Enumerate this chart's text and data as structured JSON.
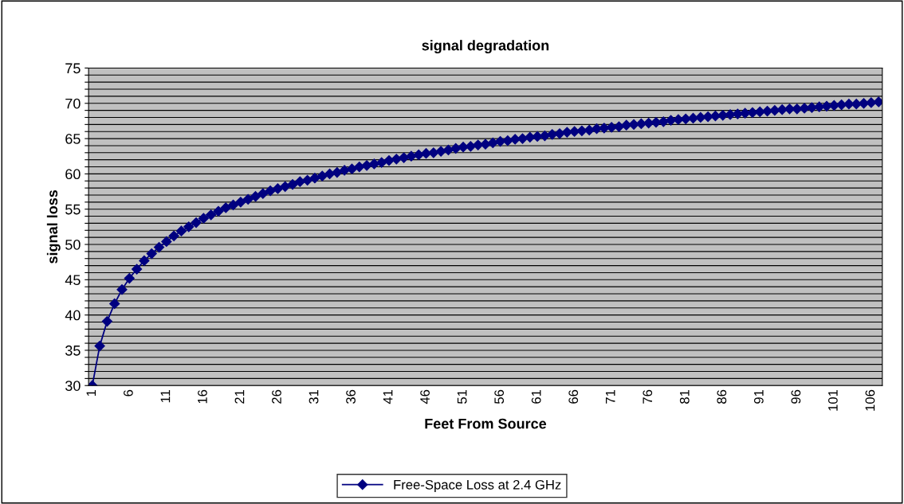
{
  "chart_data": {
    "type": "line",
    "title": "signal degradation",
    "xlabel": "Feet From Source",
    "ylabel": "signal loss",
    "categories": [
      "1",
      null,
      null,
      null,
      null,
      "6",
      null,
      null,
      null,
      null,
      "11",
      null,
      null,
      null,
      null,
      "16",
      null,
      null,
      null,
      null,
      "21",
      null,
      null,
      null,
      null,
      "26",
      null,
      null,
      null,
      null,
      "31",
      null,
      null,
      null,
      null,
      "36",
      null,
      null,
      null,
      null,
      "41",
      null,
      null,
      null,
      null,
      "46",
      null,
      null,
      null,
      null,
      "51",
      null,
      null,
      null,
      null,
      "56",
      null,
      null,
      null,
      null,
      "61",
      null,
      null,
      null,
      null,
      "66",
      null,
      null,
      null,
      null,
      "71",
      null,
      null,
      null,
      null,
      "76",
      null,
      null,
      null,
      null,
      "81",
      null,
      null,
      null,
      null,
      "86",
      null,
      null,
      null,
      null,
      "91",
      null,
      null,
      null,
      null,
      "96",
      null,
      null,
      null,
      null,
      "101",
      null,
      null,
      null,
      null,
      "106",
      null
    ],
    "series": [
      {
        "name": "Free-Space Loss at 2.4 GHz",
        "color": "#000080",
        "values": [
          30,
          35.6,
          39.1,
          41.6,
          43.6,
          45.2,
          46.5,
          47.7,
          48.7,
          49.6,
          50.4,
          51.2,
          51.9,
          52.5,
          53.1,
          53.7,
          54.2,
          54.7,
          55.2,
          55.6,
          56.0,
          56.4,
          56.8,
          57.2,
          57.6,
          57.9,
          58.2,
          58.5,
          58.9,
          59.1,
          59.4,
          59.7,
          60.0,
          60.2,
          60.5,
          60.7,
          61.0,
          61.2,
          61.4,
          61.6,
          61.9,
          62.1,
          62.3,
          62.5,
          62.7,
          62.9,
          63.0,
          63.2,
          63.4,
          63.6,
          63.8,
          63.9,
          64.1,
          64.2,
          64.4,
          64.6,
          64.7,
          64.9,
          65.0,
          65.2,
          65.3,
          65.4,
          65.6,
          65.7,
          65.9,
          66.0,
          66.1,
          66.2,
          66.4,
          66.5,
          66.6,
          66.7,
          66.9,
          67.0,
          67.1,
          67.2,
          67.3,
          67.4,
          67.6,
          67.7,
          67.8,
          67.9,
          68.0,
          68.1,
          68.2,
          68.3,
          68.4,
          68.5,
          68.6,
          68.7,
          68.8,
          68.9,
          69.0,
          69.1,
          69.2,
          69.2,
          69.3,
          69.4,
          69.5,
          69.6,
          69.7,
          69.8,
          69.9,
          69.9,
          70.0,
          70.1,
          70.2
        ]
      }
    ],
    "ylim": [
      30,
      75
    ],
    "yticks": [
      30,
      {
        "value": 31,
        "label": null
      },
      {
        "value": 32,
        "label": null
      },
      {
        "value": 33,
        "label": null
      },
      {
        "value": 34,
        "label": null
      },
      35,
      {
        "value": 36,
        "label": null
      },
      {
        "value": 37,
        "label": null
      },
      {
        "value": 38,
        "label": null
      },
      {
        "value": 39,
        "label": null
      },
      40,
      {
        "value": 41,
        "label": null
      },
      {
        "value": 42,
        "label": null
      },
      {
        "value": 43,
        "label": null
      },
      {
        "value": 44,
        "label": null
      },
      45,
      {
        "value": 46,
        "label": null
      },
      {
        "value": 47,
        "label": null
      },
      {
        "value": 48,
        "label": null
      },
      {
        "value": 49,
        "label": null
      },
      50,
      {
        "value": 51,
        "label": null
      },
      {
        "value": 52,
        "label": null
      },
      {
        "value": 53,
        "label": null
      },
      {
        "value": 54,
        "label": null
      },
      55,
      {
        "value": 56,
        "label": null
      },
      {
        "value": 57,
        "label": null
      },
      {
        "value": 58,
        "label": null
      },
      {
        "value": 59,
        "label": null
      },
      60,
      {
        "value": 61,
        "label": null
      },
      {
        "value": 62,
        "label": null
      },
      {
        "value": 63,
        "label": null
      },
      {
        "value": 64,
        "label": null
      },
      65,
      {
        "value": 66,
        "label": null
      },
      {
        "value": 67,
        "label": null
      },
      {
        "value": 68,
        "label": null
      },
      {
        "value": 69,
        "label": null
      },
      70,
      {
        "value": 71,
        "label": null
      },
      {
        "value": 72,
        "label": null
      },
      {
        "value": 73,
        "label": null
      },
      {
        "value": 74,
        "label": null
      },
      75
    ],
    "grid": "y",
    "legend": "bottom",
    "marker": "diamond",
    "line_style": "solid"
  }
}
